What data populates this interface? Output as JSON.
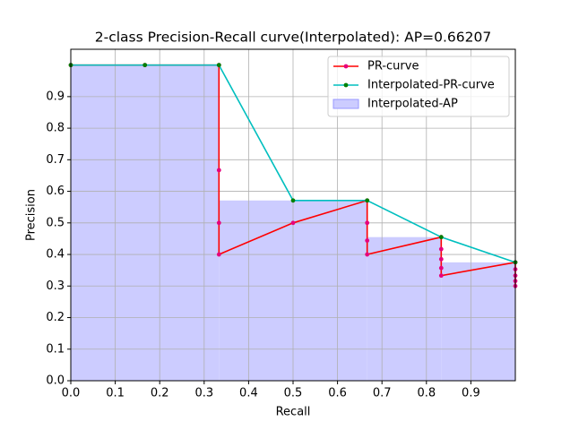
{
  "chart_data": {
    "type": "line",
    "title": "2-class Precision-Recall curve(Interpolated): AP=0.66207",
    "xlabel": "Recall",
    "ylabel": "Precision",
    "xlim": [
      0,
      1
    ],
    "ylim": [
      0,
      1.05
    ],
    "xticks": [
      {
        "value": 0,
        "label": "0.0"
      },
      0.1,
      0.2,
      0.3,
      0.4,
      0.5,
      0.6,
      0.7,
      0.8,
      0.9
    ],
    "yticks": [
      {
        "value": 0,
        "label": "0.0"
      },
      0.1,
      0.2,
      0.3,
      0.4,
      0.5,
      0.6,
      0.7,
      0.8,
      0.9
    ],
    "grid": true,
    "legend": "upper right",
    "series": [
      {
        "name": "PR-curve",
        "color": "#ff0000",
        "marker_color": "#e6007e",
        "x": [
          0,
          0.1667,
          0.3333,
          0.3333,
          0.3333,
          0.3333,
          0.5,
          0.6667,
          0.6667,
          0.6667,
          0.6667,
          0.8333,
          0.8333,
          0.8333,
          0.8333,
          0.8333,
          1,
          1,
          1,
          1,
          1
        ],
        "values": [
          1,
          1,
          1,
          0.667,
          0.5,
          0.4,
          0.5,
          0.571,
          0.5,
          0.444,
          0.4,
          0.455,
          0.417,
          0.385,
          0.357,
          0.333,
          0.375,
          0.353,
          0.333,
          0.316,
          0.3
        ]
      },
      {
        "name": "Interpolated-PR-curve",
        "color": "#00bfbf",
        "marker_color": "#008000",
        "x": [
          0,
          0.1667,
          0.3333,
          0.5,
          0.6667,
          0.8333,
          1
        ],
        "values": [
          1,
          1,
          1,
          0.571,
          0.571,
          0.455,
          0.375
        ]
      }
    ],
    "area": {
      "name": "Interpolated-AP",
      "color": "#ccccff",
      "edge_color": "#9999ff",
      "bins": [
        0,
        0.3333,
        0.6667,
        0.8333,
        1
      ],
      "values": [
        1,
        0.571,
        0.455,
        0.375
      ]
    }
  }
}
